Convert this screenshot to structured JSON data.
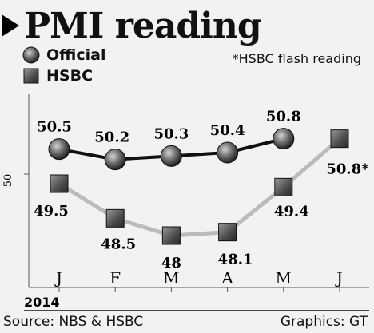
{
  "chart_data": {
    "type": "line",
    "title": "PMI reading",
    "categories": [
      "J",
      "F",
      "M",
      "A",
      "M",
      "J"
    ],
    "year_label": "2014",
    "ytick": "50",
    "ylim": [
      46.5,
      52.5
    ],
    "note": "*HSBC flash reading",
    "series": [
      {
        "name": "Official",
        "values": [
          50.5,
          50.2,
          50.3,
          50.4,
          50.8,
          null
        ],
        "labels": [
          "50.5",
          "50.2",
          "50.3",
          "50.4",
          "50.8",
          ""
        ],
        "color": "#111111",
        "marker": "circle"
      },
      {
        "name": "HSBC",
        "values": [
          49.5,
          48.5,
          48,
          48.1,
          49.4,
          50.8
        ],
        "labels": [
          "49.5",
          "48.5",
          "48",
          "48.1",
          "49.4",
          "50.8*"
        ],
        "color": "#bbbbbb",
        "marker": "square"
      }
    ],
    "grid": false
  },
  "footer": {
    "source": "Source: NBS & HSBC",
    "credit": "Graphics: GT"
  }
}
